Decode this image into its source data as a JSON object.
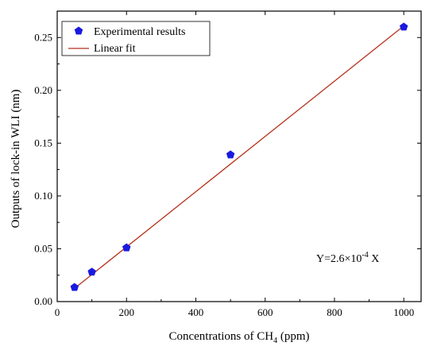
{
  "chart_data": {
    "type": "scatter",
    "xlabel": {
      "prefix": "Concentrations of CH",
      "subscript": "4",
      "suffix": " (ppm)"
    },
    "ylabel": "Outputs of lock-in WLI (nm)",
    "xlim": [
      0,
      1050
    ],
    "ylim": [
      0,
      0.275
    ],
    "x_ticks": [
      0,
      200,
      400,
      600,
      800,
      1000
    ],
    "x_tick_labels": [
      "0",
      "200",
      "400",
      "600",
      "800",
      "1000"
    ],
    "y_ticks": [
      0,
      0.05,
      0.1,
      0.15,
      0.2,
      0.25
    ],
    "y_tick_labels": [
      "0.00",
      "0.05",
      "0.10",
      "0.15",
      "0.20",
      "0.25"
    ],
    "grid": false,
    "legend_position": "top-left",
    "series": [
      {
        "name": "Experimental results",
        "kind": "scatter",
        "marker": "pentagon",
        "color": "#1a1adf",
        "x": [
          50,
          100,
          200,
          500,
          1000
        ],
        "y": [
          0.0135,
          0.028,
          0.051,
          0.139,
          0.26
        ]
      },
      {
        "name": "Linear fit",
        "kind": "line",
        "color": "#b5321e",
        "x": [
          50,
          1000
        ],
        "y": [
          0.0125,
          0.261
        ]
      }
    ],
    "annotation": {
      "prefix": "Y=2.6×10",
      "exponent": "-4",
      "suffix": " X"
    }
  }
}
